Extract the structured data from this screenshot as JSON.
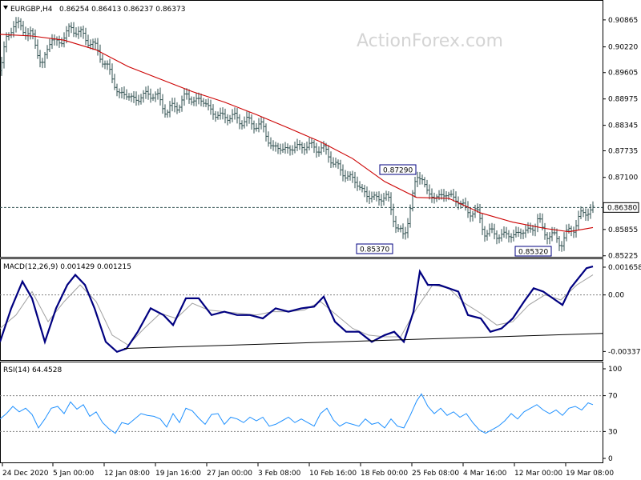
{
  "header": {
    "symbol": "EURGBP,H4",
    "ohlc": "0.86254 0.86413 0.86237 0.86373"
  },
  "watermark": "ActionForex.com",
  "colors": {
    "candle": "#2f4f4f",
    "sma": "#cc0000",
    "macd": "#000080",
    "signal": "#a0a0a0",
    "rsi": "#1e90ff",
    "grid": "#808080"
  },
  "chart_data": [
    {
      "type": "ohlc",
      "panel": "price",
      "title": "EURGBP,H4",
      "ylim": [
        0.8522,
        0.9092
      ],
      "y_ticks": [
        "0.90865",
        "0.90220",
        "0.89605",
        "0.88975",
        "0.88345",
        "0.87735",
        "0.87100",
        "0.86480",
        "0.85855",
        "0.85225"
      ],
      "current_price": "0.86380",
      "annotations": [
        {
          "text": "0.87290",
          "value": 0.8729,
          "date": "23 Feb"
        },
        {
          "text": "0.85370",
          "value": 0.8537,
          "date": "22 Feb"
        },
        {
          "text": "0.85320",
          "value": 0.8532,
          "date": "16 Mar"
        }
      ],
      "x_labels": [
        "24 Dec 2020",
        "5 Jan 00:00",
        "12 Jan 08:00",
        "19 Jan 16:00",
        "27 Jan 00:00",
        "3 Feb 08:00",
        "10 Feb 16:00",
        "18 Feb 00:00",
        "25 Feb 08:00",
        "4 Mar 16:00",
        "12 Mar 00:00",
        "19 Mar 08:00"
      ],
      "close_path": [
        [
          0,
          0.8965
        ],
        [
          8,
          0.9038
        ],
        [
          16,
          0.9079
        ],
        [
          28,
          0.9065
        ],
        [
          40,
          0.905
        ],
        [
          52,
          0.8978
        ],
        [
          64,
          0.9041
        ],
        [
          76,
          0.9032
        ],
        [
          88,
          0.907
        ],
        [
          100,
          0.9053
        ],
        [
          112,
          0.9036
        ],
        [
          124,
          0.9005
        ],
        [
          136,
          0.8965
        ],
        [
          148,
          0.891
        ],
        [
          160,
          0.8905
        ],
        [
          172,
          0.8895
        ],
        [
          184,
          0.8912
        ],
        [
          196,
          0.8902
        ],
        [
          208,
          0.8868
        ],
        [
          220,
          0.888
        ],
        [
          232,
          0.8903
        ],
        [
          244,
          0.8895
        ],
        [
          256,
          0.889
        ],
        [
          268,
          0.8858
        ],
        [
          280,
          0.8857
        ],
        [
          292,
          0.8853
        ],
        [
          304,
          0.8844
        ],
        [
          316,
          0.8839
        ],
        [
          328,
          0.883
        ],
        [
          340,
          0.878
        ],
        [
          352,
          0.8779
        ],
        [
          364,
          0.8778
        ],
        [
          376,
          0.8786
        ],
        [
          388,
          0.8783
        ],
        [
          400,
          0.878
        ],
        [
          412,
          0.876
        ],
        [
          424,
          0.8725
        ],
        [
          436,
          0.8712
        ],
        [
          448,
          0.869
        ],
        [
          460,
          0.8662
        ],
        [
          472,
          0.8662
        ],
        [
          484,
          0.866
        ],
        [
          496,
          0.8585
        ],
        [
          504,
          0.8566
        ],
        [
          512,
          0.864
        ],
        [
          520,
          0.8705
        ],
        [
          526,
          0.872
        ],
        [
          534,
          0.8665
        ],
        [
          546,
          0.8665
        ],
        [
          558,
          0.8669
        ],
        [
          570,
          0.8658
        ],
        [
          582,
          0.863
        ],
        [
          594,
          0.8628
        ],
        [
          606,
          0.8578
        ],
        [
          618,
          0.8575
        ],
        [
          630,
          0.857
        ],
        [
          642,
          0.8574
        ],
        [
          654,
          0.858
        ],
        [
          666,
          0.859
        ],
        [
          672,
          0.8612
        ],
        [
          678,
          0.858
        ],
        [
          690,
          0.8568
        ],
        [
          700,
          0.8555
        ],
        [
          708,
          0.8575
        ],
        [
          716,
          0.859
        ],
        [
          724,
          0.862
        ],
        [
          732,
          0.8625
        ],
        [
          740,
          0.8637
        ]
      ],
      "sma_path": [
        [
          0,
          0.9052
        ],
        [
          40,
          0.9048
        ],
        [
          80,
          0.9038
        ],
        [
          120,
          0.9015
        ],
        [
          160,
          0.8975
        ],
        [
          200,
          0.8945
        ],
        [
          240,
          0.8915
        ],
        [
          280,
          0.889
        ],
        [
          320,
          0.886
        ],
        [
          360,
          0.8828
        ],
        [
          400,
          0.8795
        ],
        [
          440,
          0.8755
        ],
        [
          480,
          0.87
        ],
        [
          520,
          0.8662
        ],
        [
          560,
          0.866
        ],
        [
          600,
          0.8625
        ],
        [
          640,
          0.8603
        ],
        [
          680,
          0.8588
        ],
        [
          710,
          0.858
        ],
        [
          740,
          0.859
        ]
      ]
    },
    {
      "type": "line",
      "panel": "macd",
      "title": "MACD(12,26,9) 0.001429 0.001215",
      "ylim": [
        -0.0036,
        0.0018
      ],
      "y_ticks": [
        "0.001658",
        "0.00",
        "-0.003379"
      ],
      "series": [
        {
          "name": "MACD",
          "points": [
            [
              0,
              -0.0028
            ],
            [
              14,
              -0.0008
            ],
            [
              28,
              0.0008
            ],
            [
              40,
              -0.0002
            ],
            [
              56,
              -0.0028
            ],
            [
              70,
              -0.0008
            ],
            [
              84,
              0.0006
            ],
            [
              94,
              0.0012
            ],
            [
              106,
              0.0006
            ],
            [
              118,
              -0.0008
            ],
            [
              132,
              -0.0028
            ],
            [
              146,
              -0.0034
            ],
            [
              158,
              -0.0032
            ],
            [
              172,
              -0.0022
            ],
            [
              188,
              -0.0008
            ],
            [
              204,
              -0.0012
            ],
            [
              216,
              -0.0018
            ],
            [
              232,
              -0.0002
            ],
            [
              248,
              -0.0002
            ],
            [
              264,
              -0.0012
            ],
            [
              280,
              -0.001
            ],
            [
              296,
              -0.0012
            ],
            [
              312,
              -0.0012
            ],
            [
              328,
              -0.0014
            ],
            [
              344,
              -0.0008
            ],
            [
              360,
              -0.001
            ],
            [
              376,
              -0.0008
            ],
            [
              392,
              -0.0007
            ],
            [
              404,
              -0.0001
            ],
            [
              418,
              -0.0016
            ],
            [
              432,
              -0.0022
            ],
            [
              448,
              -0.0022
            ],
            [
              464,
              -0.0028
            ],
            [
              480,
              -0.0024
            ],
            [
              492,
              -0.0022
            ],
            [
              504,
              -0.0028
            ],
            [
              516,
              -0.001
            ],
            [
              524,
              0.0014
            ],
            [
              534,
              0.0006
            ],
            [
              548,
              0.0006
            ],
            [
              560,
              0.0004
            ],
            [
              572,
              0.0002
            ],
            [
              584,
              -0.0012
            ],
            [
              600,
              -0.0014
            ],
            [
              612,
              -0.0022
            ],
            [
              626,
              -0.002
            ],
            [
              640,
              -0.0014
            ],
            [
              654,
              -0.0004
            ],
            [
              666,
              0.0004
            ],
            [
              678,
              0.0002
            ],
            [
              690,
              -0.0002
            ],
            [
              702,
              -0.0006
            ],
            [
              712,
              0.0004
            ],
            [
              722,
              0.001
            ],
            [
              732,
              0.0016
            ],
            [
              740,
              0.0017
            ]
          ]
        },
        {
          "name": "Signal",
          "points": [
            [
              0,
              -0.002
            ],
            [
              20,
              -0.0012
            ],
            [
              40,
              0.0002
            ],
            [
              60,
              -0.0016
            ],
            [
              80,
              -0.0004
            ],
            [
              100,
              0.0006
            ],
            [
              120,
              -0.0004
            ],
            [
              140,
              -0.0024
            ],
            [
              160,
              -0.003
            ],
            [
              180,
              -0.002
            ],
            [
              200,
              -0.0011
            ],
            [
              220,
              -0.0014
            ],
            [
              240,
              -0.0005
            ],
            [
              260,
              -0.0009
            ],
            [
              280,
              -0.001
            ],
            [
              300,
              -0.0011
            ],
            [
              320,
              -0.0012
            ],
            [
              340,
              -0.001
            ],
            [
              360,
              -0.001
            ],
            [
              380,
              -0.0009
            ],
            [
              400,
              -0.0004
            ],
            [
              420,
              -0.0012
            ],
            [
              440,
              -0.002
            ],
            [
              460,
              -0.0024
            ],
            [
              480,
              -0.0025
            ],
            [
              500,
              -0.0025
            ],
            [
              520,
              -0.0008
            ],
            [
              540,
              0.0006
            ],
            [
              560,
              0.0004
            ],
            [
              580,
              -0.0005
            ],
            [
              600,
              -0.0011
            ],
            [
              620,
              -0.0018
            ],
            [
              640,
              -0.0016
            ],
            [
              660,
              -0.0006
            ],
            [
              680,
              0.0
            ],
            [
              700,
              -0.0003
            ],
            [
              720,
              0.0006
            ],
            [
              740,
              0.0012
            ]
          ]
        }
      ],
      "trendline": [
        [
          155,
          -0.0032
        ],
        [
          752,
          -0.0023
        ]
      ]
    },
    {
      "type": "line",
      "panel": "rsi",
      "title": "RSI(14) 64.4528",
      "ylim": [
        0,
        100
      ],
      "y_ticks": [
        "100",
        "70",
        "30",
        "0"
      ],
      "levels": [
        70,
        30
      ],
      "series": [
        {
          "name": "RSI",
          "points": [
            [
              0,
              44
            ],
            [
              8,
              50
            ],
            [
              16,
              58
            ],
            [
              24,
              52
            ],
            [
              32,
              56
            ],
            [
              40,
              49
            ],
            [
              48,
              34
            ],
            [
              56,
              44
            ],
            [
              64,
              56
            ],
            [
              72,
              58
            ],
            [
              80,
              50
            ],
            [
              88,
              63
            ],
            [
              96,
              55
            ],
            [
              104,
              60
            ],
            [
              112,
              47
            ],
            [
              120,
              52
            ],
            [
              128,
              40
            ],
            [
              136,
              33
            ],
            [
              144,
              28
            ],
            [
              152,
              40
            ],
            [
              160,
              38
            ],
            [
              168,
              44
            ],
            [
              176,
              50
            ],
            [
              184,
              48
            ],
            [
              192,
              47
            ],
            [
              200,
              44
            ],
            [
              208,
              35
            ],
            [
              216,
              50
            ],
            [
              224,
              40
            ],
            [
              232,
              56
            ],
            [
              240,
              53
            ],
            [
              248,
              45
            ],
            [
              256,
              38
            ],
            [
              264,
              49
            ],
            [
              272,
              50
            ],
            [
              280,
              38
            ],
            [
              288,
              46
            ],
            [
              296,
              44
            ],
            [
              304,
              40
            ],
            [
              312,
              46
            ],
            [
              320,
              42
            ],
            [
              328,
              46
            ],
            [
              336,
              36
            ],
            [
              344,
              38
            ],
            [
              352,
              42
            ],
            [
              360,
              46
            ],
            [
              368,
              40
            ],
            [
              376,
              44
            ],
            [
              384,
              40
            ],
            [
              392,
              36
            ],
            [
              400,
              50
            ],
            [
              408,
              56
            ],
            [
              416,
              43
            ],
            [
              424,
              36
            ],
            [
              432,
              40
            ],
            [
              440,
              38
            ],
            [
              448,
              36
            ],
            [
              456,
              44
            ],
            [
              464,
              38
            ],
            [
              472,
              40
            ],
            [
              480,
              34
            ],
            [
              488,
              44
            ],
            [
              496,
              36
            ],
            [
              504,
              34
            ],
            [
              512,
              48
            ],
            [
              520,
              64
            ],
            [
              526,
              72
            ],
            [
              534,
              58
            ],
            [
              542,
              50
            ],
            [
              550,
              56
            ],
            [
              558,
              48
            ],
            [
              566,
              52
            ],
            [
              574,
              46
            ],
            [
              582,
              50
            ],
            [
              590,
              40
            ],
            [
              598,
              32
            ],
            [
              606,
              28
            ],
            [
              614,
              32
            ],
            [
              622,
              36
            ],
            [
              630,
              42
            ],
            [
              638,
              50
            ],
            [
              646,
              44
            ],
            [
              654,
              52
            ],
            [
              662,
              56
            ],
            [
              670,
              60
            ],
            [
              678,
              54
            ],
            [
              686,
              50
            ],
            [
              694,
              54
            ],
            [
              702,
              48
            ],
            [
              710,
              56
            ],
            [
              718,
              58
            ],
            [
              726,
              54
            ],
            [
              734,
              62
            ],
            [
              740,
              60
            ]
          ]
        }
      ]
    }
  ]
}
